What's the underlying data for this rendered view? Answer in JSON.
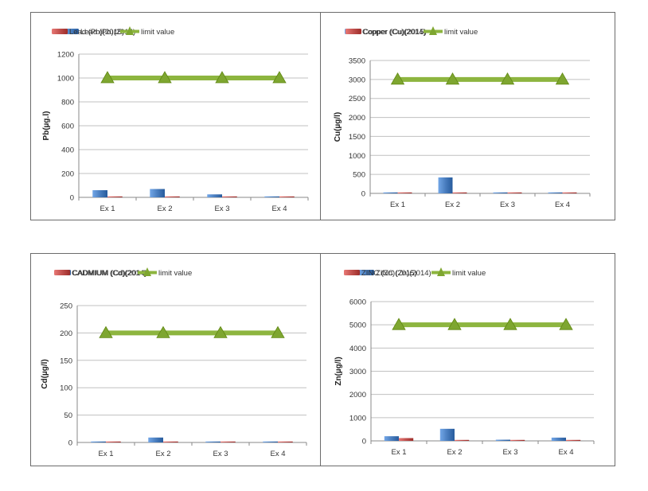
{
  "colors": {
    "series2014": "#4a7ebf",
    "series2015": "#c0504d",
    "limit": "#8db53f",
    "grid": "#c0c0c0"
  },
  "chart_data": [
    {
      "type": "bar",
      "categories": [
        "Ex 1",
        "Ex 2",
        "Ex 3",
        "Ex 4"
      ],
      "series": [
        {
          "name": "Lead (Pb)(2014)",
          "kind": "bar",
          "values": [
            60,
            70,
            25,
            5
          ]
        },
        {
          "name": "Lead (Pb)(2015)",
          "kind": "bar",
          "values": [
            6,
            0,
            0,
            4
          ]
        },
        {
          "name": "limit value",
          "kind": "line",
          "values": [
            1000,
            1000,
            1000,
            1000
          ]
        }
      ],
      "ylabel": "Pb(µg.l)",
      "ylim": [
        0,
        1200
      ],
      "yticks": [
        "0",
        "200",
        "400",
        "600",
        "800",
        "1000",
        "1200"
      ],
      "grid": true,
      "legend": "top"
    },
    {
      "type": "bar",
      "categories": [
        "Ex 1",
        "Ex 2",
        "Ex 3",
        "Ex 4"
      ],
      "series": [
        {
          "name": "Copper (Cu)(2014)",
          "kind": "bar",
          "values": [
            5,
            420,
            8,
            5
          ]
        },
        {
          "name": "Copper (Cu)(2015)",
          "kind": "bar",
          "values": [
            0,
            0,
            0,
            0
          ]
        },
        {
          "name": "limit value",
          "kind": "line",
          "values": [
            3000,
            3000,
            3000,
            3000
          ]
        }
      ],
      "ylabel": "Cu(µg/l)",
      "ylim": [
        0,
        3500
      ],
      "yticks": [
        "0",
        "500",
        "1000",
        "1500",
        "2000",
        "2500",
        "3000",
        "3500"
      ],
      "grid": true,
      "legend": "top"
    },
    {
      "type": "bar",
      "categories": [
        "Ex 1",
        "Ex 2",
        "Ex 3",
        "Ex 4"
      ],
      "series": [
        {
          "name": "CADMIUM (Cd)(2014)",
          "kind": "bar",
          "values": [
            1,
            9,
            1,
            1
          ]
        },
        {
          "name": "CADMIUM (Cd)(2014)",
          "kind": "bar",
          "values": [
            1,
            1,
            1,
            1
          ]
        },
        {
          "name": "limit value",
          "kind": "line",
          "values": [
            200,
            200,
            200,
            200
          ]
        }
      ],
      "ylabel": "Cd(µg/l)",
      "ylim": [
        0,
        250
      ],
      "yticks": [
        "0",
        "50",
        "100",
        "150",
        "200",
        "250"
      ],
      "grid": true,
      "legend": "top"
    },
    {
      "type": "bar",
      "categories": [
        "Ex 1",
        "Ex 2",
        "Ex 3",
        "Ex 4"
      ],
      "series": [
        {
          "name": "ZINC (Zn)(2014)",
          "kind": "bar",
          "values": [
            200,
            520,
            50,
            140
          ]
        },
        {
          "name": "ZINC (Zn)(2015)",
          "kind": "bar",
          "values": [
            120,
            0,
            0,
            0
          ]
        },
        {
          "name": "limit value",
          "kind": "line",
          "values": [
            5000,
            5000,
            5000,
            5000
          ]
        }
      ],
      "ylabel": "Zn(µg/l)",
      "ylim": [
        0,
        6000
      ],
      "yticks": [
        "0",
        "1000",
        "2000",
        "3000",
        "4000",
        "5000",
        "6000"
      ],
      "grid": true,
      "legend": "top"
    }
  ]
}
